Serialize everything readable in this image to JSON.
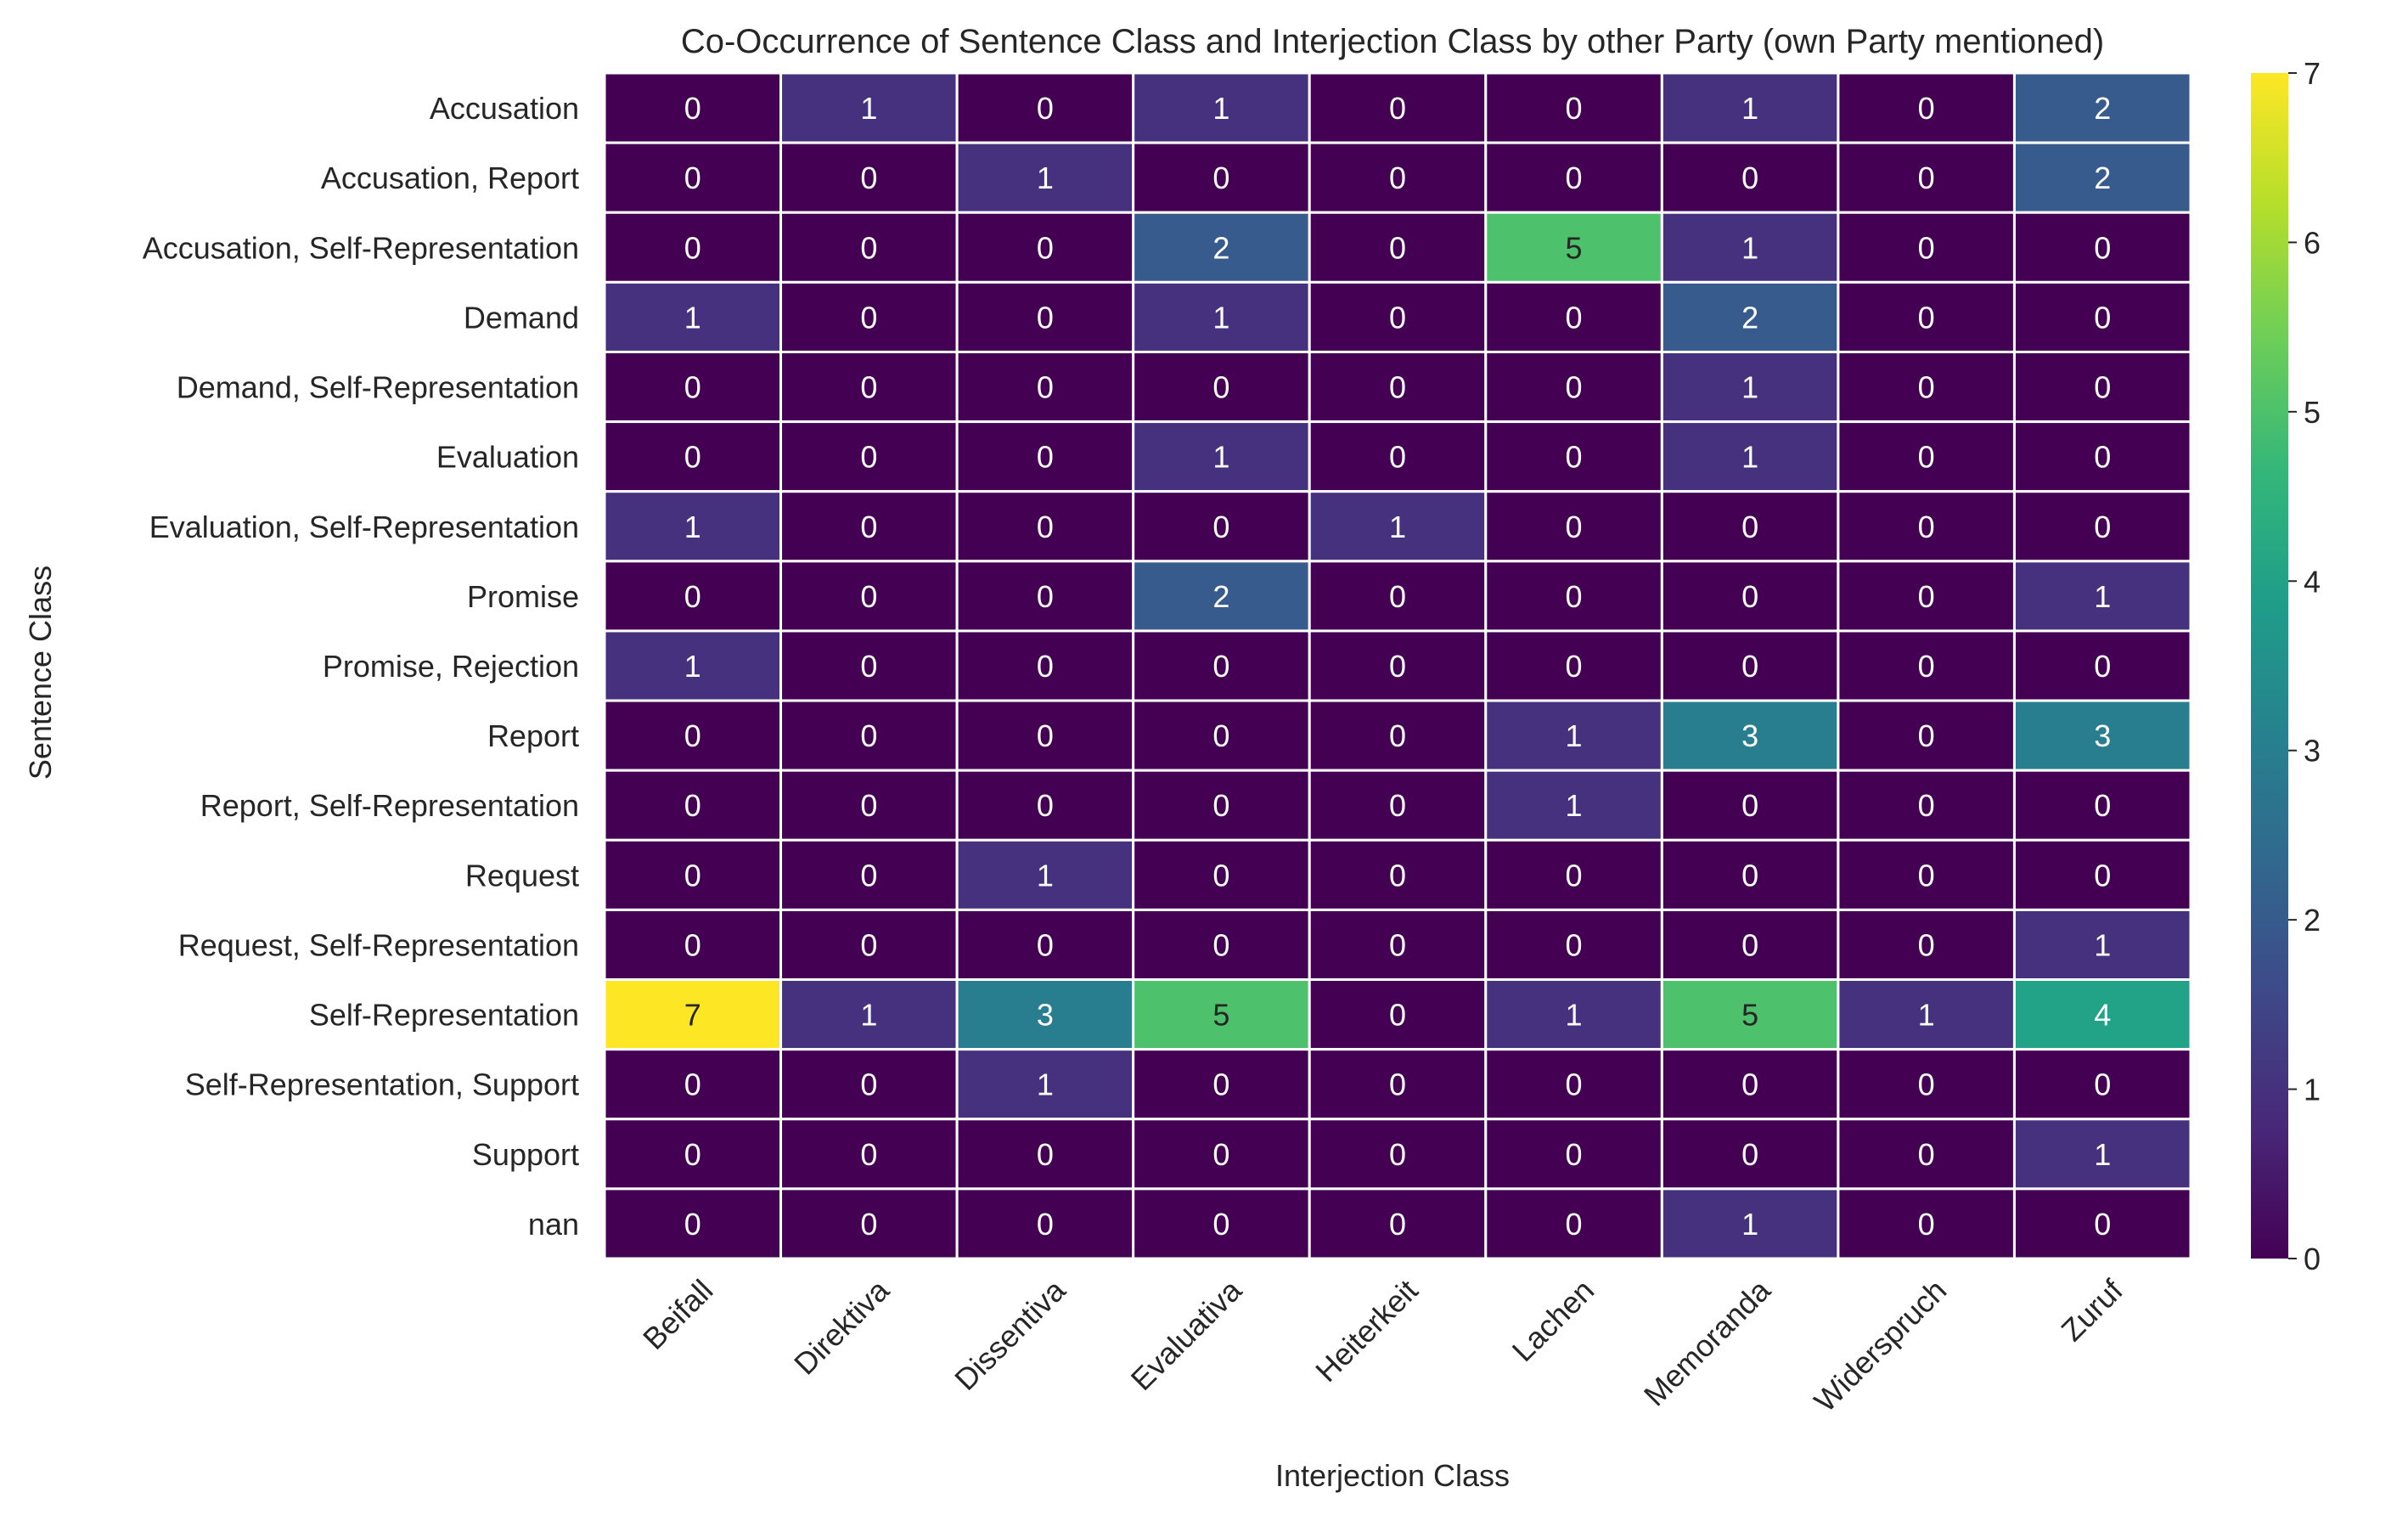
{
  "chart_data": {
    "type": "heatmap",
    "title": "Co-Occurrence of Sentence Class and Interjection Class by other Party (own Party mentioned)",
    "xlabel": "Interjection Class",
    "ylabel": "Sentence Class",
    "x_categories": [
      "Beifall",
      "Direktiva",
      "Dissentiva",
      "Evaluativa",
      "Heiterkeit",
      "Lachen",
      "Memoranda",
      "Widerspruch",
      "Zuruf"
    ],
    "y_categories": [
      "Accusation",
      "Accusation, Report",
      "Accusation, Self-Representation",
      "Demand",
      "Demand, Self-Representation",
      "Evaluation",
      "Evaluation, Self-Representation",
      "Promise",
      "Promise, Rejection",
      "Report",
      "Report, Self-Representation",
      "Request",
      "Request, Self-Representation",
      "Self-Representation",
      "Self-Representation, Support",
      "Support",
      "nan"
    ],
    "values": [
      [
        0,
        1,
        0,
        1,
        0,
        0,
        1,
        0,
        2
      ],
      [
        0,
        0,
        1,
        0,
        0,
        0,
        0,
        0,
        2
      ],
      [
        0,
        0,
        0,
        2,
        0,
        5,
        1,
        0,
        0
      ],
      [
        1,
        0,
        0,
        1,
        0,
        0,
        2,
        0,
        0
      ],
      [
        0,
        0,
        0,
        0,
        0,
        0,
        1,
        0,
        0
      ],
      [
        0,
        0,
        0,
        1,
        0,
        0,
        1,
        0,
        0
      ],
      [
        1,
        0,
        0,
        0,
        1,
        0,
        0,
        0,
        0
      ],
      [
        0,
        0,
        0,
        2,
        0,
        0,
        0,
        0,
        1
      ],
      [
        1,
        0,
        0,
        0,
        0,
        0,
        0,
        0,
        0
      ],
      [
        0,
        0,
        0,
        0,
        0,
        1,
        3,
        0,
        3
      ],
      [
        0,
        0,
        0,
        0,
        0,
        1,
        0,
        0,
        0
      ],
      [
        0,
        0,
        1,
        0,
        0,
        0,
        0,
        0,
        0
      ],
      [
        0,
        0,
        0,
        0,
        0,
        0,
        0,
        0,
        1
      ],
      [
        7,
        1,
        3,
        5,
        0,
        1,
        5,
        1,
        4
      ],
      [
        0,
        0,
        1,
        0,
        0,
        0,
        0,
        0,
        0
      ],
      [
        0,
        0,
        0,
        0,
        0,
        0,
        0,
        0,
        1
      ],
      [
        0,
        0,
        0,
        0,
        0,
        0,
        1,
        0,
        0
      ]
    ],
    "colormap": "viridis",
    "vmin": 0,
    "vmax": 7,
    "colorbar_ticks": [
      0,
      1,
      2,
      3,
      4,
      5,
      6,
      7
    ],
    "annotations": true,
    "cell_border_color": "#ffffff"
  }
}
